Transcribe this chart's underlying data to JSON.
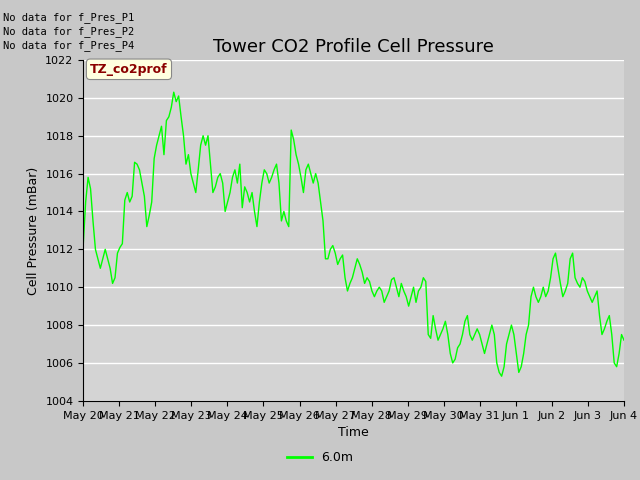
{
  "title": "Tower CO2 Profile Cell Pressure",
  "xlabel": "Time",
  "ylabel": "Cell Pressure (mBar)",
  "ylim": [
    1004,
    1022
  ],
  "yticks": [
    1004,
    1006,
    1008,
    1010,
    1012,
    1014,
    1016,
    1018,
    1020,
    1022
  ],
  "xtick_labels": [
    "May 20",
    "May 21",
    "May 22",
    "May 23",
    "May 24",
    "May 25",
    "May 26",
    "May 27",
    "May 28",
    "May 29",
    "May 30",
    "May 31",
    "Jun 1",
    "Jun 2",
    "Jun 3",
    "Jun 4"
  ],
  "line_color": "#00ff00",
  "line_label": "6.0m",
  "legend_text_lines": [
    "No data for f_Pres_P1",
    "No data for f_Pres_P2",
    "No data for f_Pres_P4"
  ],
  "legend_box_text": "TZ_co2prof",
  "figure_bg_color": "#c8c8c8",
  "plot_bg_color": "#d4d4d4",
  "grid_color": "#ffffff",
  "title_fontsize": 13,
  "axis_fontsize": 9,
  "tick_fontsize": 8,
  "x_values": [
    0,
    0.07,
    0.14,
    0.21,
    0.28,
    0.35,
    0.42,
    0.49,
    0.56,
    0.63,
    0.7,
    0.77,
    0.84,
    0.91,
    0.98,
    1.05,
    1.12,
    1.19,
    1.26,
    1.33,
    1.4,
    1.47,
    1.54,
    1.61,
    1.68,
    1.75,
    1.82,
    1.89,
    1.96,
    2.03,
    2.1,
    2.17,
    2.24,
    2.31,
    2.38,
    2.45,
    2.52,
    2.59,
    2.66,
    2.73,
    2.8,
    2.87,
    2.94,
    3.01,
    3.08,
    3.15,
    3.22,
    3.29,
    3.36,
    3.43,
    3.5,
    3.57,
    3.64,
    3.71,
    3.78,
    3.85,
    3.92,
    3.99,
    4.06,
    4.13,
    4.2,
    4.27,
    4.34,
    4.41,
    4.48,
    4.55,
    4.62,
    4.69,
    4.76,
    4.83,
    4.9,
    4.97,
    5.04,
    5.11,
    5.18,
    5.25,
    5.32,
    5.39,
    5.46,
    5.53,
    5.6,
    5.67,
    5.74,
    5.81,
    5.88,
    5.95,
    6.02,
    6.09,
    6.16,
    6.23,
    6.3,
    6.37,
    6.44,
    6.51,
    6.58,
    6.65,
    6.72,
    6.79,
    6.86,
    6.93,
    7.0,
    7.07,
    7.14,
    7.21,
    7.28,
    7.35,
    7.42,
    7.49,
    7.56,
    7.63,
    7.7,
    7.77,
    7.84,
    7.91,
    7.98,
    8.05,
    8.12,
    8.19,
    8.26,
    8.33,
    8.4,
    8.47,
    8.54,
    8.61,
    8.68,
    8.75,
    8.82,
    8.89,
    8.96,
    9.03,
    9.1,
    9.17,
    9.24,
    9.31,
    9.38,
    9.45,
    9.52,
    9.59,
    9.66,
    9.73,
    9.8,
    9.87,
    9.94,
    10.01,
    10.08,
    10.15,
    10.22,
    10.29,
    10.36,
    10.43,
    10.5,
    10.57,
    10.64,
    10.71,
    10.78,
    10.85,
    10.92,
    10.99,
    11.06,
    11.13,
    11.2,
    11.27,
    11.34,
    11.41,
    11.48,
    11.55,
    11.62,
    11.69,
    11.76,
    11.83,
    11.9,
    11.97,
    12.04,
    12.11,
    12.18,
    12.25,
    12.32,
    12.39,
    12.46,
    12.53,
    12.6,
    12.67,
    12.74,
    12.81,
    12.88,
    12.95,
    13.02,
    13.09,
    13.16,
    13.23,
    13.3,
    13.37,
    13.44,
    13.51,
    13.58,
    13.65,
    13.72,
    13.79,
    13.86,
    13.93,
    14.0,
    14.07,
    14.14,
    14.21,
    14.28,
    14.35,
    14.42,
    14.49,
    14.56,
    14.63,
    14.7,
    14.77,
    14.84,
    14.91,
    14.98,
    15.05,
    15.12,
    15.19,
    15.26,
    15.33,
    15.4,
    15.47
  ],
  "y_values": [
    1012.2,
    1014.5,
    1015.8,
    1015.2,
    1013.5,
    1012.0,
    1011.5,
    1011.0,
    1011.5,
    1012.0,
    1011.5,
    1011.0,
    1010.2,
    1010.5,
    1011.8,
    1012.1,
    1012.3,
    1014.6,
    1015.0,
    1014.5,
    1014.8,
    1016.6,
    1016.5,
    1016.2,
    1015.5,
    1014.8,
    1013.2,
    1013.8,
    1014.5,
    1016.8,
    1017.5,
    1018.0,
    1018.5,
    1017.0,
    1018.8,
    1019.0,
    1019.5,
    1020.3,
    1019.8,
    1020.1,
    1019.0,
    1018.0,
    1016.5,
    1017.0,
    1016.0,
    1015.5,
    1015.0,
    1016.2,
    1017.5,
    1018.0,
    1017.5,
    1018.0,
    1016.5,
    1015.0,
    1015.3,
    1015.8,
    1016.0,
    1015.5,
    1014.0,
    1014.5,
    1015.0,
    1015.8,
    1016.2,
    1015.5,
    1016.5,
    1014.2,
    1015.3,
    1015.0,
    1014.5,
    1015.0,
    1014.0,
    1013.2,
    1014.5,
    1015.5,
    1016.2,
    1016.0,
    1015.5,
    1015.8,
    1016.2,
    1016.5,
    1015.5,
    1013.5,
    1014.0,
    1013.5,
    1013.2,
    1018.3,
    1017.8,
    1017.0,
    1016.5,
    1015.8,
    1015.0,
    1016.2,
    1016.5,
    1016.0,
    1015.5,
    1016.0,
    1015.5,
    1014.5,
    1013.5,
    1011.5,
    1011.5,
    1012.0,
    1012.2,
    1011.8,
    1011.2,
    1011.5,
    1011.7,
    1010.5,
    1009.8,
    1010.2,
    1010.5,
    1011.0,
    1011.5,
    1011.2,
    1010.8,
    1010.2,
    1010.5,
    1010.3,
    1009.8,
    1009.5,
    1009.8,
    1010.0,
    1009.8,
    1009.2,
    1009.5,
    1009.8,
    1010.4,
    1010.5,
    1010.0,
    1009.5,
    1010.2,
    1009.8,
    1009.5,
    1009.0,
    1009.5,
    1010.0,
    1009.2,
    1009.8,
    1010.0,
    1010.5,
    1010.3,
    1007.5,
    1007.3,
    1008.5,
    1007.8,
    1007.2,
    1007.5,
    1007.8,
    1008.2,
    1007.5,
    1006.5,
    1006.0,
    1006.2,
    1006.8,
    1007.0,
    1007.5,
    1008.2,
    1008.5,
    1007.5,
    1007.2,
    1007.5,
    1007.8,
    1007.5,
    1007.0,
    1006.5,
    1007.0,
    1007.5,
    1008.0,
    1007.5,
    1006.0,
    1005.5,
    1005.3,
    1005.8,
    1007.0,
    1007.5,
    1008.0,
    1007.5,
    1006.5,
    1005.5,
    1005.8,
    1006.5,
    1007.5,
    1008.0,
    1009.5,
    1010.0,
    1009.5,
    1009.2,
    1009.5,
    1010.0,
    1009.5,
    1009.8,
    1010.5,
    1011.5,
    1011.8,
    1011.0,
    1010.2,
    1009.5,
    1009.8,
    1010.2,
    1011.5,
    1011.8,
    1010.5,
    1010.2,
    1010.0,
    1010.5,
    1010.3,
    1009.8,
    1009.5,
    1009.2,
    1009.5,
    1009.8,
    1008.5,
    1007.5,
    1007.8,
    1008.2,
    1008.5,
    1007.5,
    1006.0,
    1005.8,
    1006.5,
    1007.5,
    1007.2
  ]
}
